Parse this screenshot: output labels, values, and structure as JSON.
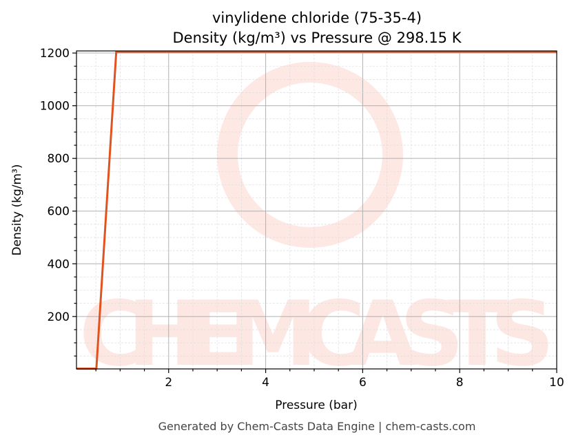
{
  "chart_data": {
    "type": "line",
    "title": "vinylidene chloride (75-35-4)",
    "subtitle": "Density (kg/m³) vs Pressure @ 298.15 K",
    "xlabel": "Pressure (bar)",
    "ylabel": "Density (kg/m³)",
    "xlim": [
      0.1,
      10
    ],
    "ylim": [
      1,
      1208
    ],
    "xticks": [
      2,
      4,
      6,
      8,
      10
    ],
    "yticks": [
      200,
      400,
      600,
      800,
      1000,
      1200
    ],
    "grid": true,
    "series": [
      {
        "color": "#e0531f",
        "x": [
          0.1,
          0.51,
          0.92,
          10
        ],
        "y": [
          2,
          2,
          1205,
          1205
        ]
      }
    ],
    "footer": "Generated by Chem-Casts Data Engine | chem-casts.com",
    "watermark": "CHEMCASTS"
  }
}
